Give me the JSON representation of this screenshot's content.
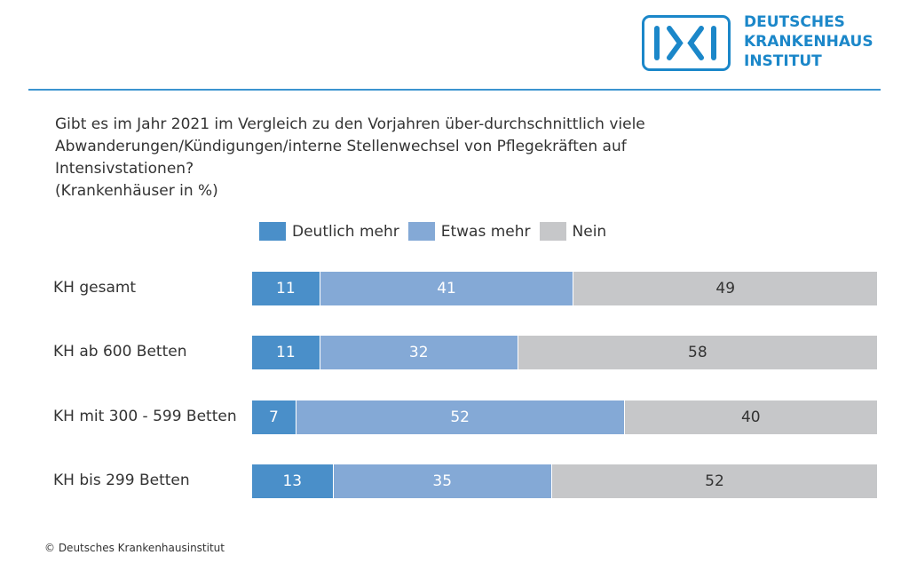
{
  "logo": {
    "lines": [
      "DEUTSCHES",
      "KRANKENHAUS",
      "INSTITUT"
    ],
    "mark": "DKI",
    "color": "#1b87c9"
  },
  "chart_data": {
    "type": "bar",
    "orientation": "horizontal",
    "stacked": true,
    "title_lines": [
      "Gibt es im Jahr 2021 im Vergleich zu den Vorjahren über-durchschnittlich viele",
      "Abwanderungen/Kündigungen/interne Stellenwechsel von Pflegekräften auf",
      "Intensivstationen?",
      "(Krankenhäuser in %)"
    ],
    "categories": [
      "KH gesamt",
      "KH ab 600 Betten",
      "KH mit 300 - 599 Betten",
      "KH bis 299 Betten"
    ],
    "series": [
      {
        "name": "Deutlich mehr",
        "values": [
          11,
          11,
          7,
          13
        ],
        "color": "#4a8fc9",
        "label_color": "#ffffff"
      },
      {
        "name": "Etwas mehr",
        "values": [
          41,
          32,
          52,
          35
        ],
        "color": "#84a9d6",
        "label_color": "#ffffff"
      },
      {
        "name": "Nein",
        "values": [
          49,
          58,
          40,
          52
        ],
        "color": "#c6c7c9",
        "label_color": "#333333"
      }
    ],
    "legend": "top",
    "grid": false
  },
  "footer": "© Deutsches Krankenhausinstitut"
}
